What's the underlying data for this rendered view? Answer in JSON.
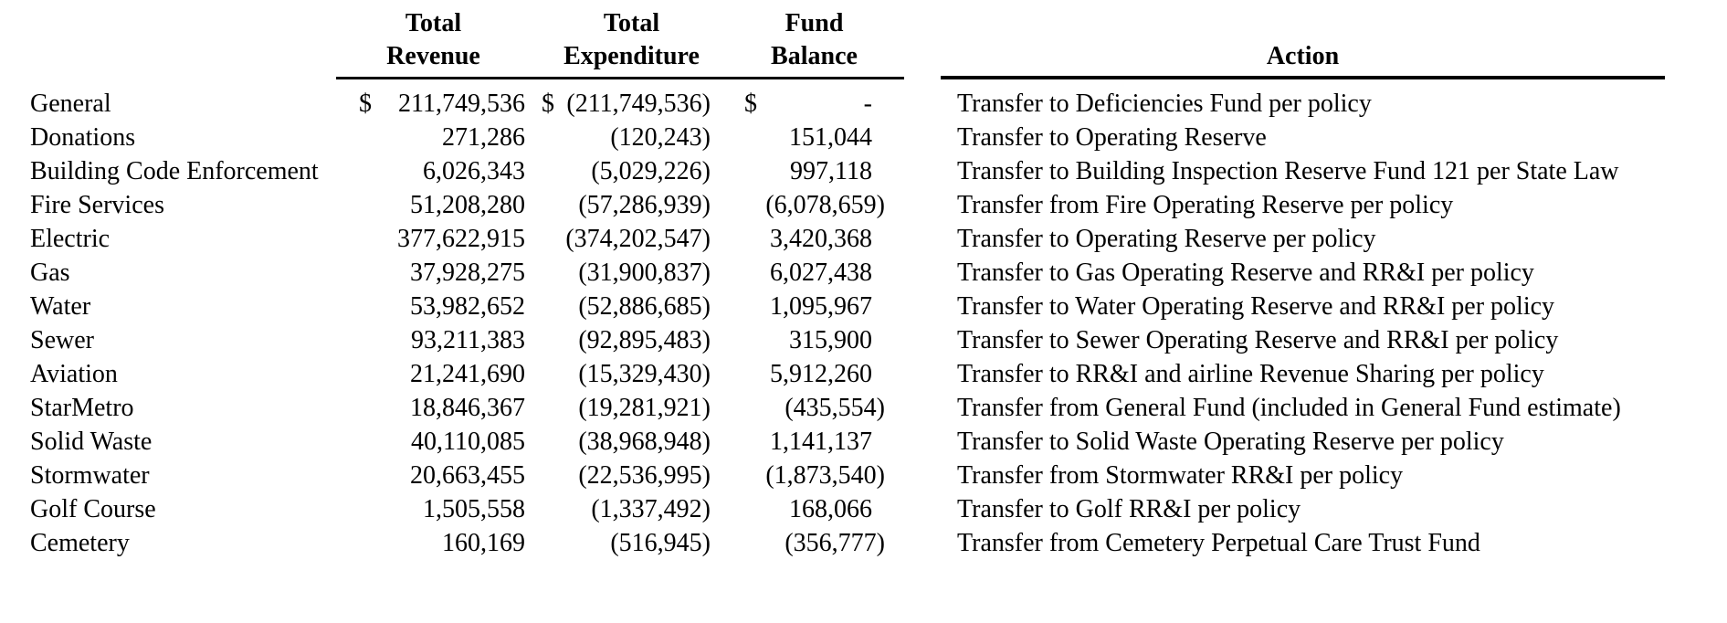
{
  "table": {
    "headers": {
      "revenue_line1": "Total",
      "revenue_line2": "Revenue",
      "expenditure_line1": "Total",
      "expenditure_line2": "Expenditure",
      "balance_line1": "Fund",
      "balance_line2": "Balance",
      "action": "Action"
    },
    "currency_symbol": "$",
    "rows": [
      {
        "fund": "General",
        "revenue": "211,749,536",
        "expenditure": "(211,749,536)",
        "balance": "-",
        "currency_row": true,
        "action": "Transfer to Deficiencies Fund per policy"
      },
      {
        "fund": "Donations",
        "revenue": "271,286",
        "expenditure": "(120,243)",
        "balance": "151,044",
        "currency_row": false,
        "action": "Transfer to Operating Reserve"
      },
      {
        "fund": "Building Code Enforcement",
        "revenue": "6,026,343",
        "expenditure": "(5,029,226)",
        "balance": "997,118",
        "currency_row": false,
        "action": "Transfer to Building Inspection Reserve Fund 121 per State Law"
      },
      {
        "fund": "Fire Services",
        "revenue": "51,208,280",
        "expenditure": "(57,286,939)",
        "balance": "(6,078,659)",
        "currency_row": false,
        "action": "Transfer from Fire Operating Reserve per policy"
      },
      {
        "fund": "Electric",
        "revenue": "377,622,915",
        "expenditure": "(374,202,547)",
        "balance": "3,420,368",
        "currency_row": false,
        "action": "Transfer to Operating Reserve per policy"
      },
      {
        "fund": "Gas",
        "revenue": "37,928,275",
        "expenditure": "(31,900,837)",
        "balance": "6,027,438",
        "currency_row": false,
        "action": "Transfer to Gas Operating Reserve and RR&I per policy"
      },
      {
        "fund": "Water",
        "revenue": "53,982,652",
        "expenditure": "(52,886,685)",
        "balance": "1,095,967",
        "currency_row": false,
        "action": "Transfer to Water Operating Reserve and RR&I per policy"
      },
      {
        "fund": "Sewer",
        "revenue": "93,211,383",
        "expenditure": "(92,895,483)",
        "balance": "315,900",
        "currency_row": false,
        "action": "Transfer to Sewer Operating Reserve and RR&I per policy"
      },
      {
        "fund": "Aviation",
        "revenue": "21,241,690",
        "expenditure": "(15,329,430)",
        "balance": "5,912,260",
        "currency_row": false,
        "action": "Transfer to RR&I and airline Revenue Sharing per policy"
      },
      {
        "fund": "StarMetro",
        "revenue": "18,846,367",
        "expenditure": "(19,281,921)",
        "balance": "(435,554)",
        "currency_row": false,
        "action": "Transfer from General Fund (included in General Fund estimate)"
      },
      {
        "fund": "Solid Waste",
        "revenue": "40,110,085",
        "expenditure": "(38,968,948)",
        "balance": "1,141,137",
        "currency_row": false,
        "action": "Transfer to Solid Waste Operating Reserve per policy"
      },
      {
        "fund": "Stormwater",
        "revenue": "20,663,455",
        "expenditure": "(22,536,995)",
        "balance": "(1,873,540)",
        "currency_row": false,
        "action": "Transfer from Stormwater RR&I per policy"
      },
      {
        "fund": "Golf Course",
        "revenue": "1,505,558",
        "expenditure": "(1,337,492)",
        "balance": "168,066",
        "currency_row": false,
        "action": "Transfer to Golf RR&I per policy"
      },
      {
        "fund": "Cemetery",
        "revenue": "160,169",
        "expenditure": "(516,945)",
        "balance": "(356,777)",
        "currency_row": false,
        "action": "Transfer from Cemetery Perpetual Care Trust Fund"
      }
    ]
  },
  "colors": {
    "text": "#000000",
    "background": "#ffffff",
    "rule": "#000000"
  }
}
